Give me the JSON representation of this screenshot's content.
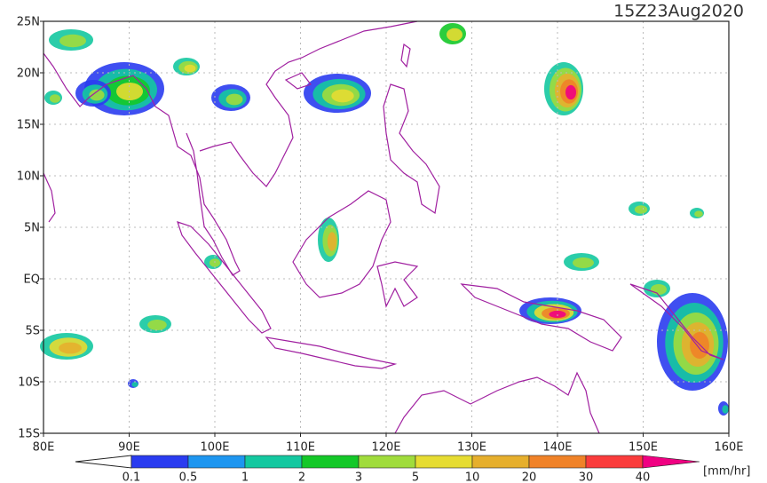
{
  "title": "15Z23Aug2020",
  "map": {
    "lon_labels": [
      "80E",
      "90E",
      "100E",
      "110E",
      "120E",
      "130E",
      "140E",
      "150E",
      "160E"
    ],
    "lat_labels": [
      "25N",
      "20N",
      "15N",
      "10N",
      "5N",
      "EQ",
      "5S",
      "10S",
      "15S"
    ],
    "coastline_color": "#a020a0"
  },
  "colorbar": {
    "labels": [
      "0.1",
      "0.5",
      "1",
      "2",
      "3",
      "5",
      "10",
      "20",
      "30",
      "40"
    ],
    "colors": [
      "#2a3cf0",
      "#1e96f0",
      "#14c8a0",
      "#14c828",
      "#a0dc3c",
      "#e6dc32",
      "#e6af2d",
      "#f08228",
      "#fa3c3c",
      "#f00082"
    ],
    "unit": "[mm/hr]"
  }
}
